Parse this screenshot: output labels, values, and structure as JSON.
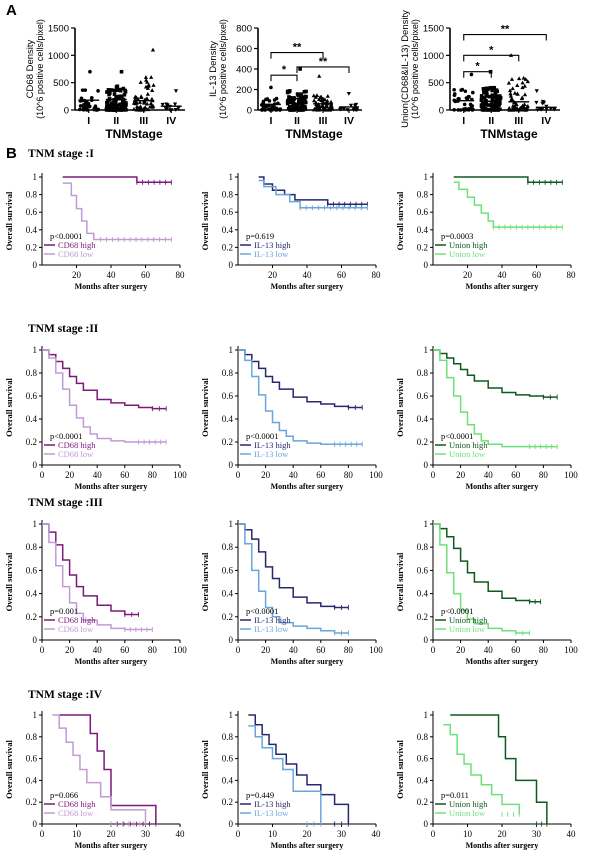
{
  "panel_labels": {
    "a": "A",
    "b": "B"
  },
  "colors": {
    "cd68_high": "#7b1a7b",
    "cd68_low": "#c29ad6",
    "il13_high": "#28286e",
    "il13_low": "#6aa6dc",
    "union_high": "#0d5a1e",
    "union_low": "#6ee07a",
    "scatter": "#000000"
  },
  "stage_titles": [
    "TNM stage :I",
    "TNM stage :II",
    "TNM stage :III",
    "TNM stage :IV"
  ],
  "chart_data": [
    {
      "id": "scatter-cd68",
      "type": "scatter",
      "ylabel": "CD68 Density",
      "ylabel2": "(10^6 positive cells/pixel)",
      "xlabel": "TNMstage",
      "categories": [
        "I",
        "II",
        "III",
        "IV"
      ],
      "yticks": [
        0,
        500,
        1000,
        1500
      ],
      "ylim": [
        0,
        1500
      ],
      "medians": [
        180,
        190,
        170,
        70
      ],
      "spreads": [
        400,
        460,
        650,
        180
      ],
      "counts": [
        36,
        95,
        60,
        14
      ],
      "maxima": [
        700,
        700,
        1100,
        350
      ],
      "significance": []
    },
    {
      "id": "scatter-il13",
      "type": "scatter",
      "ylabel": "IL-13  Density",
      "ylabel2": "(10^6 positive cells/pixel)",
      "xlabel": "TNMstage",
      "categories": [
        "I",
        "II",
        "III",
        "IV"
      ],
      "yticks": [
        0,
        200,
        400,
        600,
        800
      ],
      "ylim": [
        0,
        800
      ],
      "medians": [
        55,
        110,
        60,
        30
      ],
      "spreads": [
        120,
        190,
        150,
        60
      ],
      "counts": [
        36,
        95,
        60,
        14
      ],
      "maxima": [
        220,
        400,
        330,
        160
      ],
      "significance": [
        {
          "from": 0,
          "to": 1,
          "label": "*",
          "level": 340
        },
        {
          "from": 0,
          "to": 2,
          "label": "**",
          "level": 560
        },
        {
          "from": 1,
          "to": 3,
          "label": "**",
          "level": 420
        }
      ]
    },
    {
      "id": "scatter-union",
      "type": "scatter",
      "ylabel": "Union(CD68&IL-13)  Density",
      "ylabel2": "(10^6 positive cells/pixel)",
      "xlabel": "TNMstage",
      "categories": [
        "I",
        "II",
        "III",
        "IV"
      ],
      "yticks": [
        0,
        500,
        1000,
        1500
      ],
      "ylim": [
        0,
        1500
      ],
      "medians": [
        170,
        160,
        150,
        50
      ],
      "spreads": [
        380,
        420,
        600,
        160
      ],
      "counts": [
        36,
        95,
        60,
        14
      ],
      "maxima": [
        650,
        700,
        1000,
        350
      ],
      "significance": [
        {
          "from": 0,
          "to": 1,
          "label": "*",
          "level": 700
        },
        {
          "from": 0,
          "to": 2,
          "label": "*",
          "level": 1000
        },
        {
          "from": 0,
          "to": 3,
          "label": "**",
          "level": 1380
        }
      ]
    },
    {
      "id": "km-1-1",
      "type": "line",
      "kind": "km",
      "xlabel": "Months after surgery",
      "ylabel": "Overall survival",
      "xlim": [
        0,
        80
      ],
      "xticks": [
        20,
        40,
        60,
        80
      ],
      "yticks": [
        0.0,
        0.2,
        0.4,
        0.6,
        0.8,
        1.0
      ],
      "pvalue": "p<0.0001",
      "series": [
        {
          "name": "CD68 high",
          "color": "cd68_high",
          "x": [
            12,
            55,
            75
          ],
          "y": [
            1.0,
            0.94,
            0.94
          ]
        },
        {
          "name": "CD68 low",
          "color": "cd68_low",
          "x": [
            12,
            17,
            20,
            23,
            26,
            30,
            34,
            75
          ],
          "y": [
            0.93,
            0.79,
            0.64,
            0.5,
            0.36,
            0.29,
            0.29,
            0.29
          ]
        }
      ]
    },
    {
      "id": "km-1-2",
      "type": "line",
      "kind": "km",
      "xlabel": "Months after surgery",
      "ylabel": "Overall survival",
      "xlim": [
        0,
        80
      ],
      "xticks": [
        20,
        40,
        60,
        80
      ],
      "yticks": [
        0.0,
        0.2,
        0.4,
        0.6,
        0.8,
        1.0
      ],
      "pvalue": "p=0.619",
      "series": [
        {
          "name": "IL-13 high",
          "color": "il13_high",
          "x": [
            12,
            15,
            20,
            27,
            33,
            52,
            75
          ],
          "y": [
            1.0,
            0.92,
            0.85,
            0.8,
            0.74,
            0.69,
            0.69
          ]
        },
        {
          "name": "IL-13 low",
          "color": "il13_low",
          "x": [
            12,
            15,
            22,
            30,
            36,
            75
          ],
          "y": [
            0.96,
            0.89,
            0.8,
            0.72,
            0.65,
            0.65
          ]
        }
      ]
    },
    {
      "id": "km-1-3",
      "type": "line",
      "kind": "km",
      "xlabel": "Months after surgery",
      "ylabel": "Overall survival",
      "xlim": [
        0,
        80
      ],
      "xticks": [
        20,
        40,
        60,
        80
      ],
      "yticks": [
        0.0,
        0.2,
        0.4,
        0.6,
        0.8,
        1.0
      ],
      "pvalue": "p=0.0003",
      "series": [
        {
          "name": "Union high",
          "color": "union_high",
          "x": [
            12,
            55,
            75
          ],
          "y": [
            1.0,
            0.94,
            0.94
          ]
        },
        {
          "name": "Union low",
          "color": "union_low",
          "x": [
            12,
            15,
            20,
            24,
            28,
            32,
            35,
            75
          ],
          "y": [
            0.94,
            0.86,
            0.77,
            0.68,
            0.59,
            0.5,
            0.43,
            0.43
          ]
        }
      ]
    },
    {
      "id": "km-2-1",
      "type": "line",
      "kind": "km",
      "xlabel": "Months after surgery",
      "ylabel": "Overall survival",
      "xlim": [
        0,
        100
      ],
      "xticks": [
        0,
        20,
        40,
        60,
        80,
        100
      ],
      "yticks": [
        0.0,
        0.2,
        0.4,
        0.6,
        0.8,
        1.0
      ],
      "pvalue": "p<0.0001",
      "series": [
        {
          "name": "CD68 high",
          "color": "cd68_high",
          "x": [
            0,
            5,
            10,
            15,
            20,
            25,
            30,
            40,
            50,
            60,
            70,
            80,
            90
          ],
          "y": [
            1.0,
            0.96,
            0.9,
            0.84,
            0.77,
            0.71,
            0.65,
            0.57,
            0.54,
            0.52,
            0.5,
            0.49,
            0.49
          ]
        },
        {
          "name": "CD68 low",
          "color": "cd68_low",
          "x": [
            0,
            5,
            10,
            15,
            20,
            25,
            30,
            35,
            40,
            50,
            60,
            70,
            90
          ],
          "y": [
            1.0,
            0.93,
            0.8,
            0.66,
            0.52,
            0.41,
            0.33,
            0.27,
            0.23,
            0.21,
            0.2,
            0.2,
            0.2
          ]
        }
      ]
    },
    {
      "id": "km-2-2",
      "type": "line",
      "kind": "km",
      "xlabel": "Months after surgery",
      "ylabel": "Overall survival",
      "xlim": [
        0,
        100
      ],
      "xticks": [
        0,
        20,
        40,
        60,
        80,
        100
      ],
      "yticks": [
        0.0,
        0.2,
        0.4,
        0.6,
        0.8,
        1.0
      ],
      "pvalue": "p<0.0001",
      "series": [
        {
          "name": "IL-13 high",
          "color": "il13_high",
          "x": [
            0,
            5,
            10,
            15,
            20,
            25,
            30,
            40,
            50,
            60,
            70,
            80,
            90
          ],
          "y": [
            1.0,
            0.96,
            0.9,
            0.84,
            0.77,
            0.72,
            0.66,
            0.59,
            0.55,
            0.53,
            0.51,
            0.5,
            0.5
          ]
        },
        {
          "name": "IL-13 low",
          "color": "il13_low",
          "x": [
            0,
            5,
            10,
            15,
            20,
            25,
            30,
            35,
            40,
            50,
            60,
            70,
            90
          ],
          "y": [
            1.0,
            0.91,
            0.77,
            0.61,
            0.47,
            0.37,
            0.3,
            0.25,
            0.21,
            0.19,
            0.18,
            0.18,
            0.18
          ]
        }
      ]
    },
    {
      "id": "km-2-3",
      "type": "line",
      "kind": "km",
      "xlabel": "Months after surgery",
      "ylabel": "Overall survival",
      "xlim": [
        0,
        100
      ],
      "xticks": [
        0,
        20,
        40,
        60,
        80,
        100
      ],
      "yticks": [
        0.0,
        0.2,
        0.4,
        0.6,
        0.8,
        1.0
      ],
      "pvalue": "p<0.0001",
      "series": [
        {
          "name": "Union high",
          "color": "union_high",
          "x": [
            0,
            5,
            10,
            15,
            20,
            25,
            30,
            40,
            50,
            60,
            70,
            80,
            90
          ],
          "y": [
            1.0,
            0.97,
            0.93,
            0.88,
            0.83,
            0.78,
            0.73,
            0.67,
            0.63,
            0.61,
            0.6,
            0.59,
            0.59
          ]
        },
        {
          "name": "Union low",
          "color": "union_low",
          "x": [
            0,
            5,
            10,
            15,
            20,
            25,
            30,
            35,
            40,
            50,
            60,
            70,
            90
          ],
          "y": [
            1.0,
            0.91,
            0.76,
            0.6,
            0.46,
            0.35,
            0.27,
            0.21,
            0.18,
            0.16,
            0.16,
            0.16,
            0.16
          ]
        }
      ]
    },
    {
      "id": "km-3-1",
      "type": "line",
      "kind": "km",
      "xlabel": "Months after surgery",
      "ylabel": "Overall survival",
      "xlim": [
        0,
        100
      ],
      "xticks": [
        0,
        20,
        40,
        60,
        80,
        100
      ],
      "yticks": [
        0.0,
        0.2,
        0.4,
        0.6,
        0.8,
        1.0
      ],
      "pvalue": "p=0.001",
      "series": [
        {
          "name": "CD68 high",
          "color": "cd68_high",
          "x": [
            0,
            5,
            10,
            15,
            20,
            25,
            30,
            40,
            50,
            60,
            70
          ],
          "y": [
            1.0,
            0.93,
            0.82,
            0.69,
            0.56,
            0.46,
            0.38,
            0.3,
            0.25,
            0.22,
            0.22
          ]
        },
        {
          "name": "CD68 low",
          "color": "cd68_low",
          "x": [
            0,
            5,
            10,
            15,
            20,
            25,
            30,
            40,
            50,
            60,
            80
          ],
          "y": [
            1.0,
            0.84,
            0.64,
            0.46,
            0.32,
            0.23,
            0.17,
            0.13,
            0.1,
            0.09,
            0.09
          ]
        }
      ]
    },
    {
      "id": "km-3-2",
      "type": "line",
      "kind": "km",
      "xlabel": "Months after surgery",
      "ylabel": "Overall survival",
      "xlim": [
        0,
        100
      ],
      "xticks": [
        0,
        20,
        40,
        60,
        80,
        100
      ],
      "yticks": [
        0.0,
        0.2,
        0.4,
        0.6,
        0.8,
        1.0
      ],
      "pvalue": "p<0.0001",
      "series": [
        {
          "name": "IL-13 high",
          "color": "il13_high",
          "x": [
            0,
            5,
            10,
            15,
            20,
            25,
            30,
            40,
            50,
            60,
            70,
            80
          ],
          "y": [
            1.0,
            0.95,
            0.87,
            0.76,
            0.63,
            0.53,
            0.45,
            0.37,
            0.32,
            0.29,
            0.28,
            0.28
          ]
        },
        {
          "name": "IL-13 low",
          "color": "il13_low",
          "x": [
            0,
            5,
            10,
            15,
            20,
            25,
            30,
            40,
            50,
            60,
            70,
            80
          ],
          "y": [
            1.0,
            0.83,
            0.6,
            0.42,
            0.28,
            0.2,
            0.15,
            0.12,
            0.1,
            0.08,
            0.06,
            0.06
          ]
        }
      ]
    },
    {
      "id": "km-3-3",
      "type": "line",
      "kind": "km",
      "xlabel": "Months after surgery",
      "ylabel": "Overall survival",
      "xlim": [
        0,
        100
      ],
      "xticks": [
        0,
        20,
        40,
        60,
        80,
        100
      ],
      "yticks": [
        0.0,
        0.2,
        0.4,
        0.6,
        0.8,
        1.0
      ],
      "pvalue": "p<0.0001",
      "series": [
        {
          "name": "Union high",
          "color": "union_high",
          "x": [
            0,
            5,
            10,
            15,
            20,
            25,
            30,
            40,
            50,
            60,
            70,
            78
          ],
          "y": [
            1.0,
            0.96,
            0.89,
            0.79,
            0.68,
            0.58,
            0.5,
            0.42,
            0.36,
            0.34,
            0.33,
            0.33
          ]
        },
        {
          "name": "Union low",
          "color": "union_low",
          "x": [
            0,
            5,
            10,
            15,
            20,
            25,
            30,
            40,
            50,
            60,
            70
          ],
          "y": [
            1.0,
            0.82,
            0.58,
            0.4,
            0.26,
            0.18,
            0.14,
            0.1,
            0.08,
            0.06,
            0.06
          ]
        }
      ]
    },
    {
      "id": "km-4-1",
      "type": "line",
      "kind": "km",
      "xlabel": "Months after surgery",
      "ylabel": "Overall survival",
      "xlim": [
        0,
        40
      ],
      "xticks": [
        0,
        10,
        20,
        30,
        40
      ],
      "yticks": [
        0.0,
        0.2,
        0.4,
        0.6,
        0.8,
        1.0
      ],
      "pvalue": "p=0.066",
      "series": [
        {
          "name": "CD68 high",
          "color": "cd68_high",
          "x": [
            5,
            12,
            14,
            16,
            18,
            20,
            33
          ],
          "y": [
            1.0,
            1.0,
            0.83,
            0.67,
            0.5,
            0.17,
            0.0
          ]
        },
        {
          "name": "CD68 low",
          "color": "cd68_low",
          "x": [
            3,
            5,
            7,
            9,
            11,
            13,
            15,
            17,
            20,
            30
          ],
          "y": [
            1.0,
            0.88,
            0.75,
            0.63,
            0.5,
            0.38,
            0.38,
            0.25,
            0.13,
            0.0
          ]
        }
      ]
    },
    {
      "id": "km-4-2",
      "type": "line",
      "kind": "km",
      "xlabel": "Months after surgery",
      "ylabel": "Overall survival",
      "xlim": [
        0,
        40
      ],
      "xticks": [
        0,
        10,
        20,
        30,
        40
      ],
      "yticks": [
        0.0,
        0.2,
        0.4,
        0.6,
        0.8,
        1.0
      ],
      "pvalue": "p=0.449",
      "series": [
        {
          "name": "IL-13 high",
          "color": "il13_high",
          "x": [
            3,
            5,
            7,
            9,
            11,
            14,
            17,
            20,
            24,
            28,
            32
          ],
          "y": [
            1.0,
            0.91,
            0.82,
            0.73,
            0.64,
            0.55,
            0.45,
            0.36,
            0.27,
            0.18,
            0.0
          ]
        },
        {
          "name": "IL-13 low",
          "color": "il13_low",
          "x": [
            3,
            5,
            7,
            10,
            13,
            16,
            20,
            24
          ],
          "y": [
            0.9,
            0.8,
            0.7,
            0.6,
            0.5,
            0.3,
            0.3,
            0.0
          ]
        }
      ]
    },
    {
      "id": "km-4-3",
      "type": "line",
      "kind": "km",
      "xlabel": "Months after surgery",
      "ylabel": "Overall survival",
      "xlim": [
        0,
        40
      ],
      "xticks": [
        0,
        10,
        20,
        30,
        40
      ],
      "yticks": [
        0.0,
        0.2,
        0.4,
        0.6,
        0.8,
        1.0
      ],
      "pvalue": "p=0.011",
      "series": [
        {
          "name": "Union high",
          "color": "union_high",
          "x": [
            5,
            17,
            19,
            21,
            24,
            30,
            33
          ],
          "y": [
            1.0,
            1.0,
            0.8,
            0.6,
            0.4,
            0.2,
            0.0
          ]
        },
        {
          "name": "Union low",
          "color": "union_low",
          "x": [
            3,
            5,
            7,
            9,
            11,
            14,
            17,
            20,
            25
          ],
          "y": [
            0.91,
            0.82,
            0.64,
            0.55,
            0.45,
            0.36,
            0.27,
            0.18,
            0.09
          ]
        }
      ]
    }
  ]
}
